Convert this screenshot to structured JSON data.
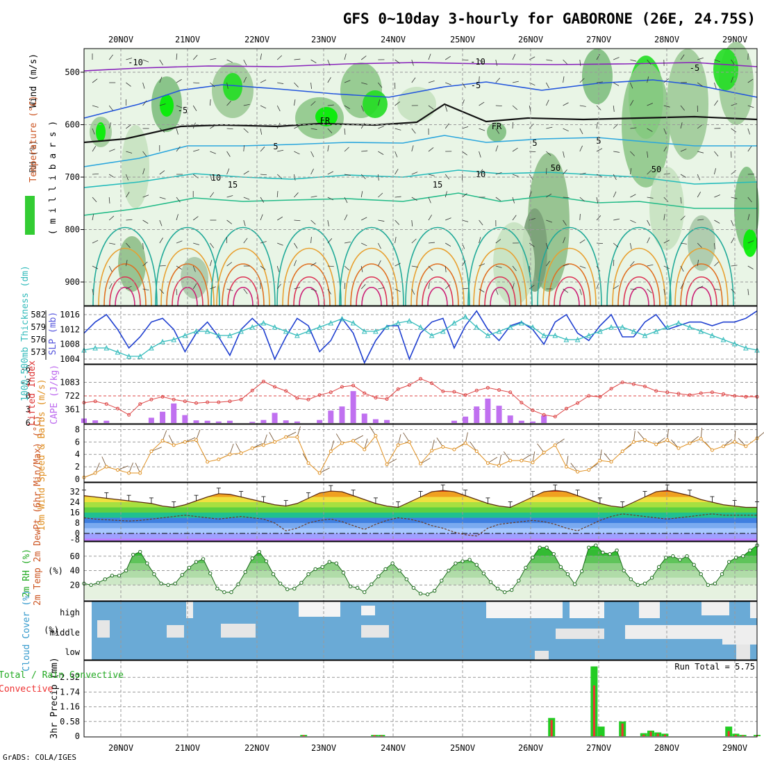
{
  "title": "GFS 0~10day 3-hourly for GABORONE (26E, 24.75S)",
  "footer": "GrADS: COLA/IGES",
  "run_total": "Run Total = 5.75",
  "colors": {
    "rh_green": "#33cc33",
    "bright_green": "#00ee00",
    "slp_line": "#1f3fd0",
    "thickness_line": "#33bbbb",
    "cape_bar": "#c070f0",
    "lifted_line": "#dd4444",
    "wind_speed": "#e09020",
    "cloud_blue": "#6aaad6",
    "precip_total": "#22cc22",
    "precip_conv": "#ee3333"
  },
  "chart_data": [
    {
      "type": "area",
      "name": "Upper-air cross section",
      "ylabel_parts": [
        "Wind (m/s)",
        "Temperature (°C)",
        "RH (%)"
      ],
      "yunit": "( m i l l i b a r s )",
      "y_ticks": [
        500,
        600,
        700,
        800,
        900
      ],
      "ylim": [
        945,
        455
      ],
      "dates": [
        "20NOV",
        "21NOV",
        "22NOV",
        "23NOV",
        "24NOV",
        "25NOV",
        "26NOV",
        "27NOV",
        "28NOV",
        "29NOV"
      ],
      "contour_labels": [
        "-10",
        "-5",
        "FR",
        "5",
        "10",
        "15",
        "-10",
        "-5",
        "FR",
        "10",
        "15",
        "5",
        "-5",
        "5",
        "50",
        "50"
      ]
    },
    {
      "type": "line",
      "name": "SLP / Thickness",
      "ylabel_left": "1000-500mb Thickness (dm)",
      "ylabel_right": "SLP (mb)",
      "left_ticks": [
        582,
        579,
        576,
        573
      ],
      "right_ticks": [
        1016,
        1012,
        1008,
        1004
      ],
      "series": [
        {
          "name": "SLP",
          "axis": "right",
          "values": [
            1011,
            1014,
            1016,
            1012,
            1007,
            1010,
            1014,
            1015,
            1012,
            1006,
            1011,
            1014,
            1010,
            1005,
            1012,
            1015,
            1012,
            1004,
            1010,
            1015,
            1013,
            1006,
            1009,
            1015,
            1011,
            1003,
            1009,
            1013,
            1013,
            1004,
            1011,
            1014,
            1015,
            1007,
            1013,
            1017,
            1012,
            1009,
            1013,
            1014,
            1012,
            1008,
            1014,
            1016,
            1011,
            1009,
            1013,
            1016,
            1010,
            1010,
            1014,
            1016,
            1012,
            1013,
            1014,
            1014,
            1013,
            1014,
            1014,
            1015,
            1017
          ]
        },
        {
          "name": "Thickness",
          "axis": "left",
          "values": [
            573.5,
            574,
            574,
            573,
            572,
            572,
            574,
            575.5,
            576,
            577,
            578,
            578,
            577,
            577,
            578,
            579,
            580,
            579,
            578,
            577,
            578,
            579,
            580,
            581,
            580,
            578,
            578,
            579,
            580,
            580.5,
            579,
            577,
            578,
            580,
            581.5,
            579,
            577,
            578,
            579,
            580,
            579,
            577,
            577,
            576,
            576,
            577,
            578,
            579,
            579,
            578,
            577,
            578,
            579,
            580,
            579,
            578,
            577,
            576,
            575,
            574,
            573.5
          ]
        }
      ]
    },
    {
      "type": "bar",
      "name": "CAPE / Lifted Index",
      "ylabel_left": "Lifted Index",
      "ylabel_right": "CAPE (J/kg)",
      "li_ticks": [
        "-6",
        "-3",
        "0",
        "3",
        "6"
      ],
      "cape_ticks": [
        "1083",
        "722",
        "361"
      ],
      "li_range": [
        -6,
        6
      ],
      "cape_range": [
        0,
        1444
      ],
      "cape": [
        120,
        70,
        60,
        0,
        0,
        0,
        140,
        300,
        520,
        210,
        70,
        60,
        40,
        60,
        0,
        30,
        80,
        270,
        70,
        40,
        0,
        80,
        330,
        440,
        850,
        250,
        100,
        80,
        0,
        0,
        0,
        0,
        0,
        60,
        170,
        440,
        650,
        460,
        200,
        60,
        40,
        200,
        0,
        0,
        0,
        0,
        0,
        0,
        0,
        0,
        0,
        0,
        0,
        0,
        0,
        0,
        0,
        0,
        0,
        0,
        0
      ],
      "lifted_index": [
        1.5,
        1.2,
        1.8,
        2.8,
        4.2,
        1.8,
        0.8,
        0.2,
        0.8,
        1.2,
        1.6,
        1.4,
        1.4,
        1.2,
        0.8,
        -1.2,
        -3.2,
        -2,
        -1.1,
        0.5,
        0.8,
        -0.2,
        -0.8,
        -2,
        -2.3,
        -0.6,
        0.4,
        0.7,
        -1.5,
        -2.4,
        -3.8,
        -2.8,
        -1,
        -0.9,
        -0.2,
        -1.2,
        -1.8,
        -1.3,
        -0.8,
        1.5,
        3.2,
        4.2,
        4.6,
        2.8,
        1.6,
        0,
        0.2,
        -1.6,
        -3,
        -2.6,
        -2.1,
        -1.1,
        -0.8,
        -0.5,
        -0.2,
        -0.6,
        -0.8,
        -0.4,
        0,
        0.2,
        0.2
      ]
    },
    {
      "type": "line",
      "name": "10m Wind",
      "ylabel": "10m Wind Speed & Barbs (m/s)",
      "y_ticks": [
        8,
        6,
        4,
        2,
        0
      ],
      "ylim": [
        0,
        8.5
      ],
      "values": [
        0.3,
        1,
        2,
        1.5,
        1,
        1,
        4.5,
        6.2,
        5.5,
        6,
        6.3,
        2.8,
        3.2,
        4,
        4.2,
        5,
        5.5,
        6,
        6.8,
        6.8,
        2.6,
        1,
        4.5,
        5.8,
        6.2,
        4.8,
        7,
        2.4,
        5.5,
        6,
        2.5,
        4.6,
        5.2,
        4.8,
        5.8,
        4.5,
        2.6,
        2.2,
        3,
        3,
        2.7,
        4.3,
        5.5,
        2,
        1.2,
        1.5,
        3,
        2.8,
        4.5,
        6,
        6.3,
        5.6,
        6.3,
        5,
        5.8,
        6.5,
        4.7,
        5.3,
        6,
        5.3,
        6.6
      ]
    },
    {
      "type": "area",
      "name": "2m Temperature / DewPoint",
      "ylabel": "2m Temp 2m DewPt (6hr Min/Max) (°C)",
      "y_ticks": [
        32,
        24,
        16,
        8,
        0
      ],
      "extra_tick": "-8",
      "ylim": [
        -9,
        36
      ],
      "temp": [
        29,
        28,
        27,
        26,
        25,
        24,
        23,
        21,
        20,
        22,
        25,
        28,
        30.5,
        30,
        28,
        26,
        24,
        22,
        21,
        23,
        27,
        31,
        32.5,
        32,
        29,
        26,
        23,
        21,
        20,
        24,
        28,
        32,
        33,
        32,
        29,
        26,
        23,
        21,
        20,
        24,
        28,
        32,
        33,
        32,
        29,
        26,
        23,
        21,
        20,
        24,
        28,
        32,
        33,
        31,
        29,
        26,
        24,
        22,
        21,
        20,
        20
      ],
      "dewpoint": [
        12,
        11,
        10.5,
        10,
        9.5,
        10,
        11,
        12,
        13,
        14,
        13,
        12,
        11,
        12,
        13,
        12,
        11,
        8,
        2,
        4,
        8,
        10,
        11,
        9,
        6,
        3,
        7,
        10,
        12,
        11,
        9,
        6,
        4,
        1,
        -1,
        -2,
        4,
        7,
        8,
        9,
        10,
        9,
        7,
        4,
        2,
        6,
        10,
        13,
        15,
        14,
        13,
        12,
        11,
        12,
        13,
        14,
        15,
        14,
        14,
        14,
        14
      ]
    },
    {
      "type": "area",
      "name": "2m RH",
      "ylabel": "2m RH (%)",
      "y_ticks": [
        60,
        40,
        20
      ],
      "ylim": [
        0,
        80
      ],
      "values": [
        22,
        20,
        23,
        28,
        33,
        33,
        40,
        62,
        66,
        50,
        35,
        22,
        20,
        22,
        34,
        44,
        52,
        56,
        36,
        15,
        10,
        10,
        21,
        38,
        57,
        66,
        53,
        35,
        22,
        14,
        15,
        23,
        35,
        42,
        45,
        52,
        50,
        37,
        18,
        16,
        10,
        21,
        32,
        42,
        50,
        40,
        28,
        16,
        8,
        7,
        12,
        26,
        40,
        50,
        53,
        55,
        48,
        36,
        24,
        15,
        10,
        13,
        26,
        44,
        58,
        72,
        72,
        63,
        45,
        35,
        21,
        39,
        72,
        75,
        65,
        63,
        68,
        40,
        28,
        20,
        22,
        30,
        45,
        58,
        60,
        55,
        60,
        48,
        35,
        20,
        22,
        35,
        52,
        58,
        60,
        68,
        75
      ]
    },
    {
      "type": "heatmap",
      "name": "Cloud Cover",
      "ylabel": "Cloud Cover (%)",
      "rows": [
        "high",
        "middle",
        "low"
      ]
    },
    {
      "type": "bar",
      "name": "3hr Precip",
      "ylabel_left": "Total / Rain Convective",
      "ylabel": "3hr Precip (mm)",
      "y_ticks": [
        "2.32",
        "1.74",
        "1.16",
        "0.58",
        "0"
      ],
      "ylim": [
        0,
        2.9
      ],
      "total": [
        0,
        0,
        0,
        0,
        0,
        0,
        0,
        0,
        0,
        0,
        0,
        0,
        0,
        0,
        0,
        0,
        0,
        0,
        0,
        0,
        0,
        0,
        0,
        0,
        0,
        0,
        0,
        0,
        0,
        0,
        0,
        0.05,
        0,
        0,
        0,
        0,
        0,
        0,
        0,
        0,
        0,
        0.05,
        0.05,
        0,
        0,
        0,
        0,
        0,
        0,
        0,
        0,
        0,
        0,
        0,
        0,
        0,
        0,
        0,
        0,
        0,
        0,
        0,
        0,
        0,
        0,
        0,
        0.72,
        0,
        0,
        0,
        0,
        0,
        2.75,
        0.38,
        0,
        0,
        0.58,
        0,
        0,
        0.12,
        0.22,
        0.15,
        0.1,
        0,
        0,
        0,
        0,
        0,
        0,
        0,
        0,
        0.38,
        0.1,
        0.05,
        0,
        0.05
      ],
      "convective": [
        0,
        0,
        0,
        0,
        0,
        0,
        0,
        0,
        0,
        0,
        0,
        0,
        0,
        0,
        0,
        0,
        0,
        0,
        0,
        0,
        0,
        0,
        0,
        0,
        0,
        0,
        0,
        0,
        0,
        0,
        0,
        0.04,
        0,
        0,
        0,
        0,
        0,
        0,
        0,
        0,
        0,
        0.04,
        0.03,
        0,
        0,
        0,
        0,
        0,
        0,
        0,
        0,
        0,
        0,
        0,
        0,
        0,
        0,
        0,
        0,
        0,
        0,
        0,
        0,
        0,
        0,
        0,
        0.64,
        0,
        0,
        0,
        0,
        0,
        2.0,
        0.02,
        0,
        0,
        0.5,
        0,
        0,
        0.06,
        0.18,
        0.1,
        0.06,
        0,
        0,
        0,
        0,
        0,
        0,
        0,
        0,
        0.2,
        0.05,
        0.03,
        0,
        0.03
      ]
    }
  ]
}
